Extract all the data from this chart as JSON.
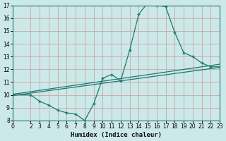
{
  "title": "",
  "xlabel": "Humidex (Indice chaleur)",
  "ylabel": "",
  "background_color": "#cce8e8",
  "grid_color": "#d4a0a0",
  "line_color": "#1a7a6e",
  "xlim": [
    0,
    23
  ],
  "ylim": [
    8,
    17
  ],
  "yticks": [
    8,
    9,
    10,
    11,
    12,
    13,
    14,
    15,
    16,
    17
  ],
  "xticks": [
    0,
    2,
    3,
    4,
    5,
    6,
    7,
    8,
    9,
    10,
    11,
    12,
    13,
    14,
    15,
    16,
    17,
    18,
    19,
    20,
    21,
    22,
    23
  ],
  "curve_x": [
    0,
    2,
    3,
    4,
    5,
    6,
    7,
    8,
    9,
    10,
    11,
    12,
    13,
    14,
    15,
    16,
    17,
    18,
    19,
    20,
    21,
    22,
    23
  ],
  "curve_y": [
    10,
    10,
    9.5,
    9.2,
    8.8,
    8.6,
    8.5,
    8.0,
    9.3,
    11.3,
    11.6,
    11.1,
    13.5,
    16.3,
    17.2,
    17.0,
    16.9,
    14.9,
    13.3,
    13.0,
    12.5,
    12.2,
    12.2
  ],
  "trend1_x": [
    0,
    23
  ],
  "trend1_y": [
    10.05,
    12.4
  ],
  "trend2_x": [
    0,
    23
  ],
  "trend2_y": [
    9.95,
    12.15
  ]
}
